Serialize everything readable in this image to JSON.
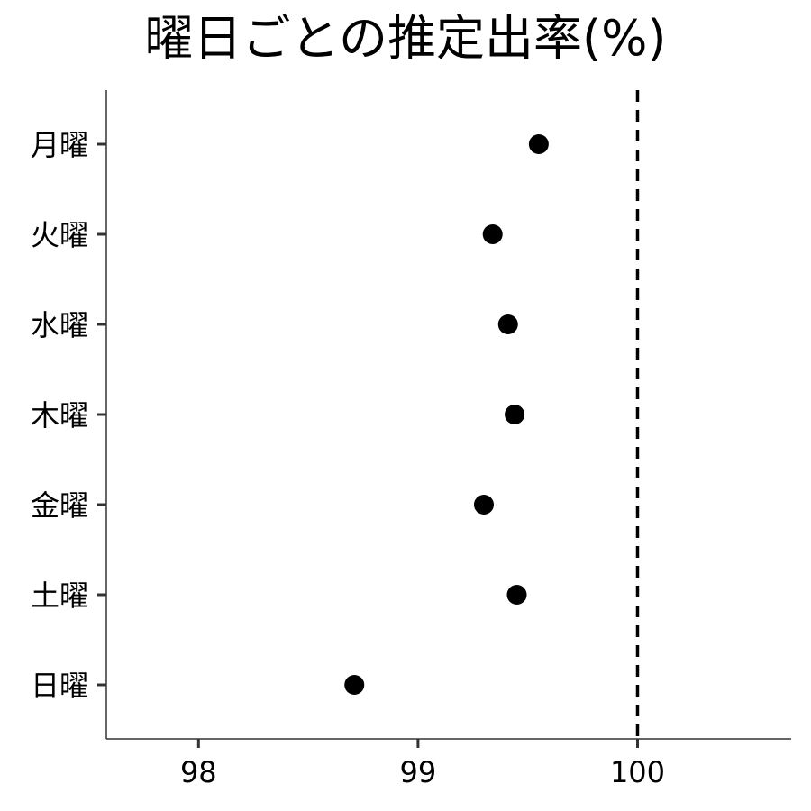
{
  "chart_data": {
    "type": "scatter",
    "title": "曜日ごとの推定出率(%)",
    "xlabel": "",
    "ylabel": "",
    "xlim": [
      97.58,
      100.7
    ],
    "x_ticks": [
      "98",
      "99",
      "100"
    ],
    "x_tick_values": [
      98,
      99,
      100
    ],
    "categories": [
      "月曜",
      "火曜",
      "水曜",
      "木曜",
      "金曜",
      "土曜",
      "日曜"
    ],
    "values": [
      99.55,
      99.34,
      99.41,
      99.44,
      99.3,
      99.45,
      98.71
    ],
    "reference_line": {
      "x": 100,
      "style": "dashed"
    },
    "grid": false,
    "colors": {
      "points": "#000000",
      "axis": "#333333",
      "reference_line": "#000000"
    }
  }
}
